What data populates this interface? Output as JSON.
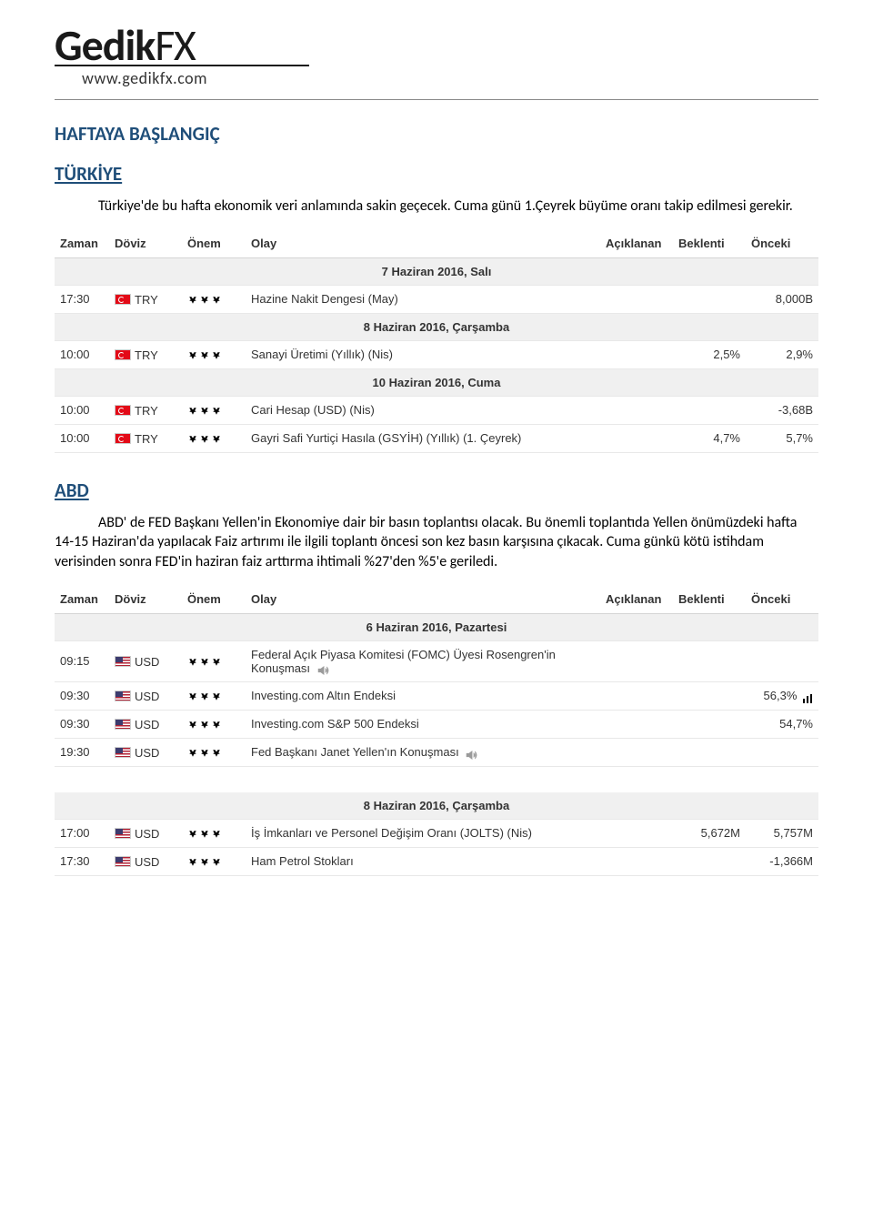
{
  "logo": {
    "brand_prefix": "Gedik",
    "brand_suffix": "FX",
    "url": "www.gedikfx.com"
  },
  "heading": "HAFTAYA BAŞLANGIÇ",
  "colors": {
    "heading": "#1f4e79",
    "text": "#000000",
    "table_header_bg": "#ffffff",
    "date_header_bg": "#f0f0f0",
    "row_border": "#e8e8e8",
    "bull_on": "#6b6b6b",
    "bull_off": "#d8d8d8",
    "flag_tr": "#e30a17"
  },
  "fonts": {
    "body_family": "Calibri, Arial, sans-serif",
    "table_family": "Arial, sans-serif",
    "heading_size_pt": 16,
    "body_size_pt": 12,
    "table_size_pt": 10
  },
  "sections": [
    {
      "title": "TÜRKİYE",
      "paragraphs": [
        "Türkiye'de bu hafta ekonomik veri anlamında sakin geçecek. Cuma günü 1.Çeyrek büyüme oranı takip edilmesi gerekir."
      ],
      "table": {
        "columns": [
          "Zaman",
          "Döviz",
          "Önem",
          "Olay",
          "Açıklanan",
          "Beklenti",
          "Önceki"
        ],
        "groups": [
          {
            "date": "7 Haziran 2016, Salı",
            "rows": [
              {
                "time": "17:30",
                "flag": "tr",
                "currency": "TRY",
                "importance": 1,
                "event": "Hazine Nakit Dengesi (May)",
                "actual": "",
                "forecast": "",
                "previous": "8,000B"
              }
            ]
          },
          {
            "date": "8 Haziran 2016, Çarşamba",
            "rows": [
              {
                "time": "10:00",
                "flag": "tr",
                "currency": "TRY",
                "importance": 1,
                "event": "Sanayi Üretimi (Yıllık) (Nis)",
                "actual": "",
                "forecast": "2,5%",
                "previous": "2,9%"
              }
            ]
          },
          {
            "date": "10 Haziran 2016, Cuma",
            "rows": [
              {
                "time": "10:00",
                "flag": "tr",
                "currency": "TRY",
                "importance": 1,
                "event": "Cari Hesap (USD) (Nis)",
                "actual": "",
                "forecast": "",
                "previous": "-3,68B"
              },
              {
                "time": "10:00",
                "flag": "tr",
                "currency": "TRY",
                "importance": 2,
                "event": "Gayri Safi Yurtiçi Hasıla (GSYİH) (Yıllık) (1. Çeyrek)",
                "actual": "",
                "forecast": "4,7%",
                "previous": "5,7%"
              }
            ]
          }
        ]
      }
    },
    {
      "title": "ABD",
      "paragraphs": [
        "ABD' de FED Başkanı Yellen'in Ekonomiye dair bir basın toplantısı olacak. Bu önemli toplantıda Yellen önümüzdeki hafta 14-15 Haziran'da yapılacak Faiz artırımı ile ilgili toplantı öncesi son kez basın karşısına çıkacak. Cuma günkü kötü istihdam verisinden sonra FED'in haziran faiz arttırma ihtimali %27'den %5'e geriledi."
      ],
      "table": {
        "columns": [
          "Zaman",
          "Döviz",
          "Önem",
          "Olay",
          "Açıklanan",
          "Beklenti",
          "Önceki"
        ],
        "groups": [
          {
            "date": "6 Haziran 2016, Pazartesi",
            "rows": [
              {
                "time": "09:15",
                "flag": "us",
                "currency": "USD",
                "importance": 2,
                "event": "Federal Açık Piyasa Komitesi (FOMC) Üyesi Rosengren'in Konuşması",
                "speech": true,
                "actual": "",
                "forecast": "",
                "previous": ""
              },
              {
                "time": "09:30",
                "flag": "us",
                "currency": "USD",
                "importance": 2,
                "event": "Investing.com Altın Endeksi",
                "actual": "",
                "forecast": "",
                "previous": "56,3%",
                "chart": true
              },
              {
                "time": "09:30",
                "flag": "us",
                "currency": "USD",
                "importance": 2,
                "event": "Investing.com S&P 500 Endeksi",
                "actual": "",
                "forecast": "",
                "previous": "54,7%"
              },
              {
                "time": "19:30",
                "flag": "us",
                "currency": "USD",
                "importance": 3,
                "event": "Fed Başkanı Janet Yellen'ın Konuşması",
                "speech": true,
                "actual": "",
                "forecast": "",
                "previous": ""
              }
            ]
          }
        ]
      },
      "table2": {
        "columns": null,
        "groups": [
          {
            "date": "8 Haziran 2016, Çarşamba",
            "rows": [
              {
                "time": "17:00",
                "flag": "us",
                "currency": "USD",
                "importance": 2,
                "event": "İş İmkanları ve Personel Değişim Oranı (JOLTS) (Nis)",
                "actual": "",
                "forecast": "5,672M",
                "previous": "5,757M"
              },
              {
                "time": "17:30",
                "flag": "us",
                "currency": "USD",
                "importance": 3,
                "event": "Ham Petrol Stokları",
                "actual": "",
                "forecast": "",
                "previous": "-1,366M"
              }
            ]
          }
        ]
      }
    }
  ]
}
